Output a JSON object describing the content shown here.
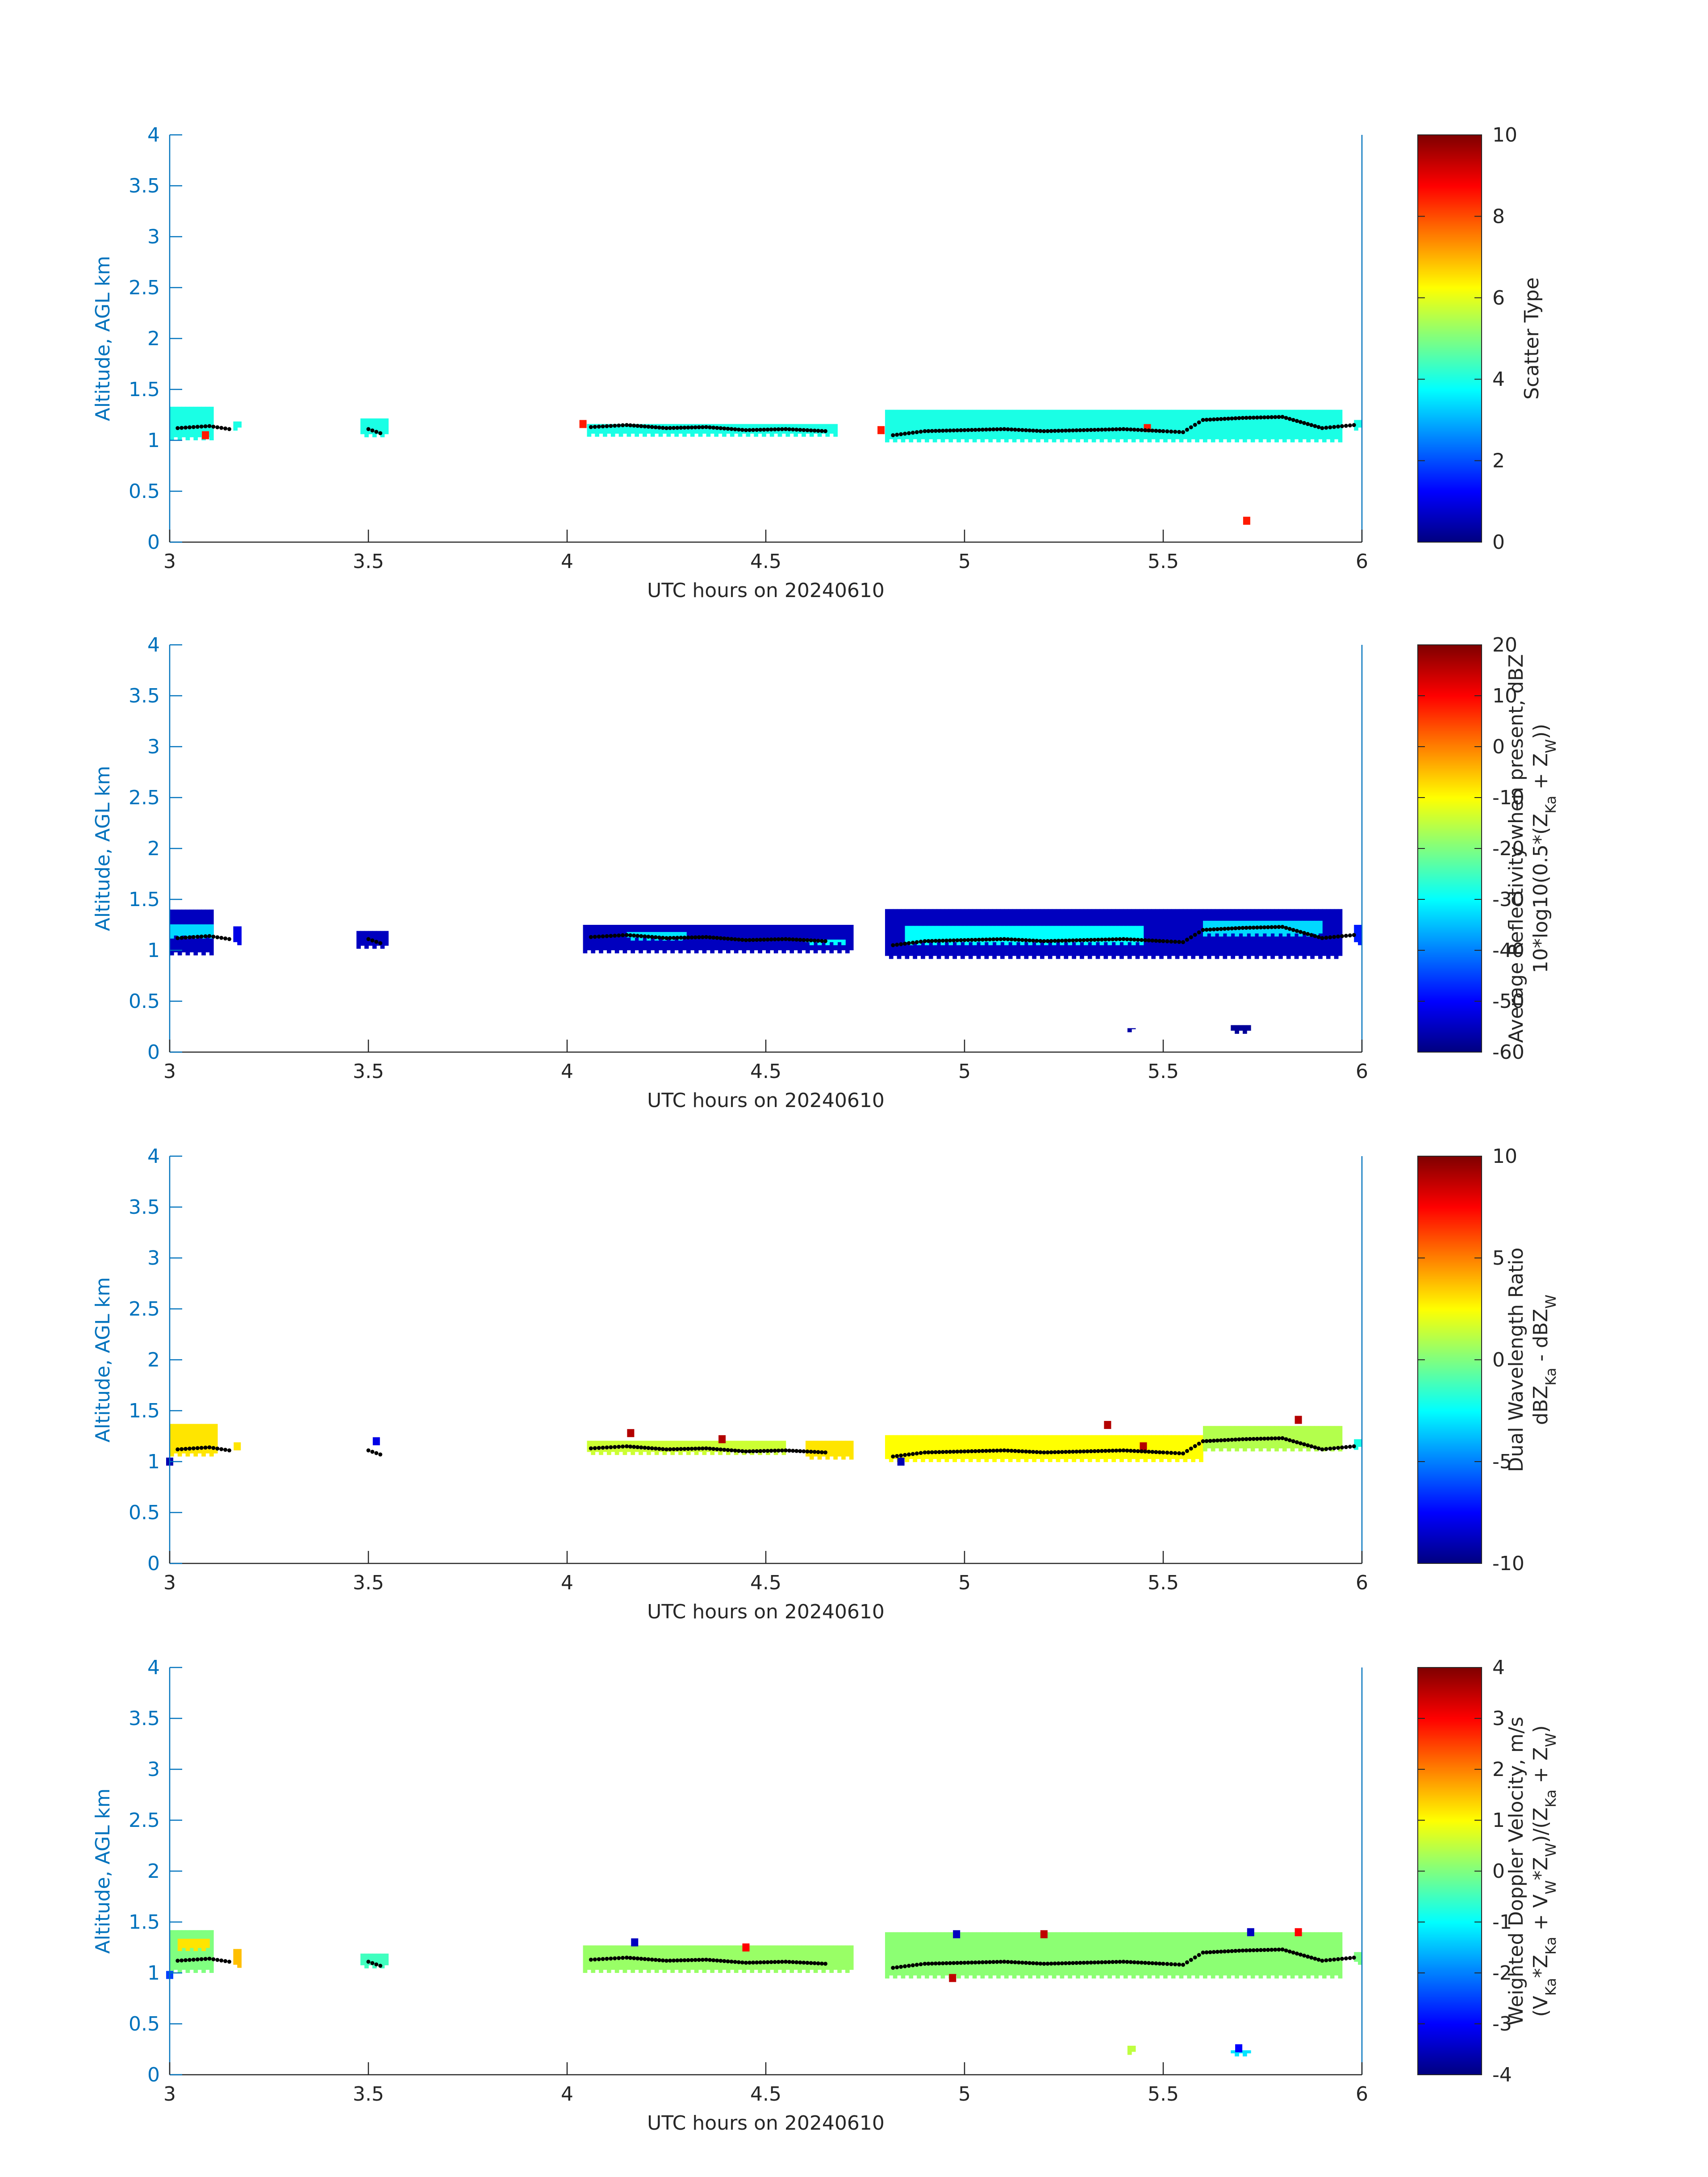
{
  "chart_data": [
    {
      "type": "heatmap",
      "xlabel": "UTC hours on 20240610",
      "ylabel": "Altitude, AGL km",
      "xlim": [
        3,
        6
      ],
      "ylim": [
        0,
        4
      ],
      "xticks": [
        "3",
        "3.5",
        "4",
        "4.5",
        "5",
        "5.5",
        "6"
      ],
      "yticks": [
        "0",
        "0.5",
        "1",
        "1.5",
        "2",
        "2.5",
        "3",
        "3.5",
        "4"
      ],
      "colorbar": {
        "label_lines": [
          "Scatter Type"
        ],
        "range": [
          0,
          10
        ],
        "ticks": [
          "0",
          "2",
          "4",
          "6",
          "8",
          "10"
        ]
      },
      "segments": [
        {
          "x0": 3.0,
          "x1": 3.11,
          "y0": 1.0,
          "y1": 1.33,
          "value": 4
        },
        {
          "x0": 3.16,
          "x1": 3.18,
          "y0": 1.08,
          "y1": 1.23,
          "value": 4
        },
        {
          "x0": 3.48,
          "x1": 3.55,
          "y0": 1.03,
          "y1": 1.23,
          "value": 4
        },
        {
          "x0": 4.05,
          "x1": 4.68,
          "y0": 1.02,
          "y1": 1.22,
          "value": 4
        },
        {
          "x0": 4.8,
          "x1": 5.95,
          "y0": 0.98,
          "y1": 1.33,
          "value": 4
        },
        {
          "x0": 5.98,
          "x1": 6.0,
          "y0": 1.08,
          "y1": 1.2,
          "value": 4
        }
      ],
      "spots": [
        {
          "x": 3.09,
          "y": 1.05,
          "value": 8.5
        },
        {
          "x": 4.04,
          "y": 1.16,
          "value": 8.5
        },
        {
          "x": 4.79,
          "y": 1.1,
          "value": 8.5
        },
        {
          "x": 5.46,
          "y": 1.12,
          "value": 8.5
        },
        {
          "x": 5.71,
          "y": 0.21,
          "value": 8.5
        }
      ],
      "cloud_base": [
        {
          "x": 3.02,
          "y": 1.12
        },
        {
          "x": 3.1,
          "y": 1.14
        },
        {
          "x": 3.15,
          "y": 1.11
        },
        {
          "x": 3.5,
          "y": 1.11
        },
        {
          "x": 3.53,
          "y": 1.07
        },
        {
          "x": 4.06,
          "y": 1.13
        },
        {
          "x": 4.15,
          "y": 1.15
        },
        {
          "x": 4.25,
          "y": 1.12
        },
        {
          "x": 4.35,
          "y": 1.13
        },
        {
          "x": 4.45,
          "y": 1.1
        },
        {
          "x": 4.55,
          "y": 1.11
        },
        {
          "x": 4.65,
          "y": 1.09
        },
        {
          "x": 4.82,
          "y": 1.05
        },
        {
          "x": 4.9,
          "y": 1.09
        },
        {
          "x": 5.0,
          "y": 1.1
        },
        {
          "x": 5.1,
          "y": 1.11
        },
        {
          "x": 5.2,
          "y": 1.09
        },
        {
          "x": 5.3,
          "y": 1.1
        },
        {
          "x": 5.4,
          "y": 1.11
        },
        {
          "x": 5.5,
          "y": 1.09
        },
        {
          "x": 5.55,
          "y": 1.08
        },
        {
          "x": 5.6,
          "y": 1.2
        },
        {
          "x": 5.7,
          "y": 1.22
        },
        {
          "x": 5.8,
          "y": 1.23
        },
        {
          "x": 5.9,
          "y": 1.12
        },
        {
          "x": 5.98,
          "y": 1.15
        }
      ]
    },
    {
      "type": "heatmap",
      "xlabel": "UTC hours on 20240610",
      "ylabel": "Altitude, AGL km",
      "xlim": [
        3,
        6
      ],
      "ylim": [
        0,
        4
      ],
      "xticks": [
        "3",
        "3.5",
        "4",
        "4.5",
        "5",
        "5.5",
        "6"
      ],
      "yticks": [
        "0",
        "0.5",
        "1",
        "1.5",
        "2",
        "2.5",
        "3",
        "3.5",
        "4"
      ],
      "colorbar": {
        "label_lines": [
          "Average Reflectivity when present, dBZ",
          "10*log10(0.5*(Z_Ka + Z_W))"
        ],
        "range": [
          -60,
          20
        ],
        "ticks": [
          "-60",
          "-50",
          "-40",
          "-30",
          "-20",
          "-10",
          "0",
          "10",
          "20"
        ]
      },
      "segments": [
        {
          "x0": 3.0,
          "x1": 3.11,
          "y0": 0.95,
          "y1": 1.4,
          "value": -55
        },
        {
          "x0": 3.0,
          "x1": 3.11,
          "y0": 1.1,
          "y1": 1.3,
          "value": -33
        },
        {
          "x0": 3.16,
          "x1": 3.18,
          "y0": 1.05,
          "y1": 1.25,
          "value": -52
        },
        {
          "x0": 3.47,
          "x1": 3.55,
          "y0": 1.0,
          "y1": 1.25,
          "value": -55
        },
        {
          "x0": 4.04,
          "x1": 4.72,
          "y0": 0.97,
          "y1": 1.28,
          "value": -55
        },
        {
          "x0": 4.15,
          "x1": 4.3,
          "y0": 1.08,
          "y1": 1.18,
          "value": -32
        },
        {
          "x0": 4.6,
          "x1": 4.7,
          "y0": 1.05,
          "y1": 1.15,
          "value": -30
        },
        {
          "x0": 4.8,
          "x1": 5.95,
          "y0": 0.9,
          "y1": 1.42,
          "value": -55
        },
        {
          "x0": 4.85,
          "x1": 5.45,
          "y0": 1.05,
          "y1": 1.3,
          "value": -30
        },
        {
          "x0": 5.6,
          "x1": 5.9,
          "y0": 1.12,
          "y1": 1.32,
          "value": -33
        },
        {
          "x0": 5.98,
          "x1": 6.0,
          "y0": 1.05,
          "y1": 1.25,
          "value": -48
        },
        {
          "x0": 5.41,
          "x1": 5.43,
          "y0": 0.18,
          "y1": 0.28,
          "value": -57
        },
        {
          "x0": 5.67,
          "x1": 5.72,
          "y0": 0.18,
          "y1": 0.28,
          "value": -58
        }
      ],
      "spots": [],
      "cloud_base": [
        {
          "x": 3.02,
          "y": 1.12
        },
        {
          "x": 3.1,
          "y": 1.14
        },
        {
          "x": 3.15,
          "y": 1.11
        },
        {
          "x": 3.5,
          "y": 1.11
        },
        {
          "x": 3.53,
          "y": 1.07
        },
        {
          "x": 4.06,
          "y": 1.13
        },
        {
          "x": 4.15,
          "y": 1.15
        },
        {
          "x": 4.25,
          "y": 1.12
        },
        {
          "x": 4.35,
          "y": 1.13
        },
        {
          "x": 4.45,
          "y": 1.1
        },
        {
          "x": 4.55,
          "y": 1.11
        },
        {
          "x": 4.65,
          "y": 1.09
        },
        {
          "x": 4.82,
          "y": 1.05
        },
        {
          "x": 4.9,
          "y": 1.09
        },
        {
          "x": 5.0,
          "y": 1.1
        },
        {
          "x": 5.1,
          "y": 1.11
        },
        {
          "x": 5.2,
          "y": 1.09
        },
        {
          "x": 5.3,
          "y": 1.1
        },
        {
          "x": 5.4,
          "y": 1.11
        },
        {
          "x": 5.5,
          "y": 1.09
        },
        {
          "x": 5.55,
          "y": 1.08
        },
        {
          "x": 5.6,
          "y": 1.2
        },
        {
          "x": 5.7,
          "y": 1.22
        },
        {
          "x": 5.8,
          "y": 1.23
        },
        {
          "x": 5.9,
          "y": 1.12
        },
        {
          "x": 5.98,
          "y": 1.15
        }
      ]
    },
    {
      "type": "heatmap",
      "xlabel": "UTC hours on 20240610",
      "ylabel": "Altitude, AGL km",
      "xlim": [
        3,
        6
      ],
      "ylim": [
        0,
        4
      ],
      "xticks": [
        "3",
        "3.5",
        "4",
        "4.5",
        "5",
        "5.5",
        "6"
      ],
      "yticks": [
        "0",
        "0.5",
        "1",
        "1.5",
        "2",
        "2.5",
        "3",
        "3.5",
        "4"
      ],
      "colorbar": {
        "label_lines": [
          "Dual Wavelength Ratio",
          "dBZ_Ka - dBZ_W"
        ],
        "range": [
          -10,
          10
        ],
        "ticks": [
          "-10",
          "-5",
          "0",
          "5",
          "10"
        ]
      },
      "segments": [
        {
          "x0": 3.0,
          "x1": 3.12,
          "y0": 1.05,
          "y1": 1.37,
          "value": 3
        },
        {
          "x0": 4.05,
          "x1": 4.55,
          "y0": 1.05,
          "y1": 1.25,
          "value": 1.5
        },
        {
          "x0": 4.6,
          "x1": 4.72,
          "y0": 1.02,
          "y1": 1.22,
          "value": 3
        },
        {
          "x0": 4.8,
          "x1": 5.6,
          "y0": 0.98,
          "y1": 1.32,
          "value": 2.5
        },
        {
          "x0": 5.6,
          "x1": 5.95,
          "y0": 1.1,
          "y1": 1.38,
          "value": 1
        },
        {
          "x0": 5.98,
          "x1": 6.0,
          "y0": 1.1,
          "y1": 1.22,
          "value": -2
        }
      ],
      "spots": [
        {
          "x": 3.0,
          "y": 1.0,
          "value": -9
        },
        {
          "x": 3.17,
          "y": 1.15,
          "value": 3
        },
        {
          "x": 3.52,
          "y": 1.2,
          "value": -8
        },
        {
          "x": 4.16,
          "y": 1.28,
          "value": 9
        },
        {
          "x": 4.39,
          "y": 1.22,
          "value": 9
        },
        {
          "x": 5.36,
          "y": 1.36,
          "value": 9
        },
        {
          "x": 5.45,
          "y": 1.15,
          "value": 9
        },
        {
          "x": 5.84,
          "y": 1.41,
          "value": 9
        },
        {
          "x": 4.84,
          "y": 1.0,
          "value": -9
        }
      ],
      "cloud_base": [
        {
          "x": 3.02,
          "y": 1.12
        },
        {
          "x": 3.1,
          "y": 1.14
        },
        {
          "x": 3.15,
          "y": 1.11
        },
        {
          "x": 3.5,
          "y": 1.11
        },
        {
          "x": 3.53,
          "y": 1.07
        },
        {
          "x": 4.06,
          "y": 1.13
        },
        {
          "x": 4.15,
          "y": 1.15
        },
        {
          "x": 4.25,
          "y": 1.12
        },
        {
          "x": 4.35,
          "y": 1.13
        },
        {
          "x": 4.45,
          "y": 1.1
        },
        {
          "x": 4.55,
          "y": 1.11
        },
        {
          "x": 4.65,
          "y": 1.09
        },
        {
          "x": 4.82,
          "y": 1.05
        },
        {
          "x": 4.9,
          "y": 1.09
        },
        {
          "x": 5.0,
          "y": 1.1
        },
        {
          "x": 5.1,
          "y": 1.11
        },
        {
          "x": 5.2,
          "y": 1.09
        },
        {
          "x": 5.3,
          "y": 1.1
        },
        {
          "x": 5.4,
          "y": 1.11
        },
        {
          "x": 5.5,
          "y": 1.09
        },
        {
          "x": 5.55,
          "y": 1.08
        },
        {
          "x": 5.6,
          "y": 1.2
        },
        {
          "x": 5.7,
          "y": 1.22
        },
        {
          "x": 5.8,
          "y": 1.23
        },
        {
          "x": 5.9,
          "y": 1.12
        },
        {
          "x": 5.98,
          "y": 1.15
        }
      ]
    },
    {
      "type": "heatmap",
      "xlabel": "UTC hours on 20240610",
      "ylabel": "Altitude, AGL km",
      "xlim": [
        3,
        6
      ],
      "ylim": [
        0,
        4
      ],
      "xticks": [
        "3",
        "3.5",
        "4",
        "4.5",
        "5",
        "5.5",
        "6"
      ],
      "yticks": [
        "0",
        "0.5",
        "1",
        "1.5",
        "2",
        "2.5",
        "3",
        "3.5",
        "4"
      ],
      "colorbar": {
        "label_lines": [
          "Weighted Doppler Velocity, m/s",
          "(V_Ka*Z_Ka + V_W*Z_W)/(Z_Ka + Z_W)"
        ],
        "range": [
          -4,
          4
        ],
        "ticks": [
          "-4",
          "-3",
          "-2",
          "-1",
          "0",
          "1",
          "2",
          "3",
          "4"
        ]
      },
      "segments": [
        {
          "x0": 3.0,
          "x1": 3.11,
          "y0": 1.0,
          "y1": 1.42,
          "value": 0
        },
        {
          "x0": 3.02,
          "x1": 3.1,
          "y0": 1.2,
          "y1": 1.38,
          "value": 1.2
        },
        {
          "x0": 3.16,
          "x1": 3.18,
          "y0": 1.05,
          "y1": 1.25,
          "value": 1.5
        },
        {
          "x0": 3.48,
          "x1": 3.55,
          "y0": 1.03,
          "y1": 1.25,
          "value": -0.5
        },
        {
          "x0": 4.04,
          "x1": 4.72,
          "y0": 1.0,
          "y1": 1.3,
          "value": 0.2
        },
        {
          "x0": 4.8,
          "x1": 5.95,
          "y0": 0.93,
          "y1": 1.4,
          "value": 0.1
        },
        {
          "x0": 5.98,
          "x1": 6.0,
          "y0": 1.08,
          "y1": 1.25,
          "value": 0
        },
        {
          "x0": 5.41,
          "x1": 5.43,
          "y0": 0.18,
          "y1": 0.3,
          "value": 0.5
        },
        {
          "x0": 5.67,
          "x1": 5.72,
          "y0": 0.18,
          "y1": 0.3,
          "value": -1.2
        }
      ],
      "spots": [
        {
          "x": 3.0,
          "y": 0.98,
          "value": -2.5
        },
        {
          "x": 4.17,
          "y": 1.3,
          "value": -3.5
        },
        {
          "x": 4.45,
          "y": 1.25,
          "value": 3
        },
        {
          "x": 4.98,
          "y": 1.38,
          "value": -3.5
        },
        {
          "x": 4.97,
          "y": 0.95,
          "value": 3.5
        },
        {
          "x": 5.2,
          "y": 1.38,
          "value": 3.5
        },
        {
          "x": 5.69,
          "y": 0.26,
          "value": -3
        },
        {
          "x": 5.72,
          "y": 1.4,
          "value": -3.5
        },
        {
          "x": 5.84,
          "y": 1.4,
          "value": 3
        }
      ],
      "cloud_base": [
        {
          "x": 3.02,
          "y": 1.12
        },
        {
          "x": 3.1,
          "y": 1.14
        },
        {
          "x": 3.15,
          "y": 1.11
        },
        {
          "x": 3.5,
          "y": 1.11
        },
        {
          "x": 3.53,
          "y": 1.07
        },
        {
          "x": 4.06,
          "y": 1.13
        },
        {
          "x": 4.15,
          "y": 1.15
        },
        {
          "x": 4.25,
          "y": 1.12
        },
        {
          "x": 4.35,
          "y": 1.13
        },
        {
          "x": 4.45,
          "y": 1.1
        },
        {
          "x": 4.55,
          "y": 1.11
        },
        {
          "x": 4.65,
          "y": 1.09
        },
        {
          "x": 4.82,
          "y": 1.05
        },
        {
          "x": 4.9,
          "y": 1.09
        },
        {
          "x": 5.0,
          "y": 1.1
        },
        {
          "x": 5.1,
          "y": 1.11
        },
        {
          "x": 5.2,
          "y": 1.09
        },
        {
          "x": 5.3,
          "y": 1.1
        },
        {
          "x": 5.4,
          "y": 1.11
        },
        {
          "x": 5.5,
          "y": 1.09
        },
        {
          "x": 5.55,
          "y": 1.08
        },
        {
          "x": 5.6,
          "y": 1.2
        },
        {
          "x": 5.7,
          "y": 1.22
        },
        {
          "x": 5.8,
          "y": 1.23
        },
        {
          "x": 5.9,
          "y": 1.12
        },
        {
          "x": 5.98,
          "y": 1.15
        }
      ]
    }
  ],
  "colors": {
    "axis": "#0072BD",
    "tick_label_x": "#262626",
    "marker": "#000000",
    "colormap": "jet"
  }
}
